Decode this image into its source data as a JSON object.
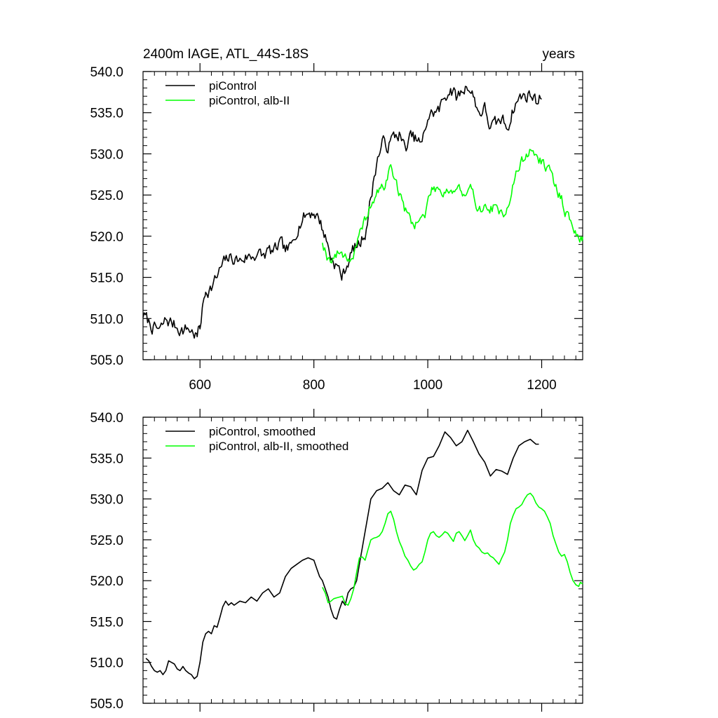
{
  "figure": {
    "title_left": "2400m IAGE, ATL_44S-18S",
    "title_right": "years"
  },
  "colors": {
    "picontrol": "#000000",
    "alb": "#00ff00",
    "axis": "#000000"
  },
  "chart_data": [
    {
      "type": "line",
      "id": "raw",
      "xlim": [
        500,
        1272
      ],
      "ylim": [
        505,
        540
      ],
      "xticks": [
        600,
        800,
        1000,
        1200
      ],
      "xtick_labels": [
        "600",
        "800",
        "1000",
        "1200"
      ],
      "yticks": [
        505,
        510,
        515,
        520,
        525,
        530,
        535,
        540
      ],
      "ytick_labels": [
        "505.0",
        "510.0",
        "515.0",
        "520.0",
        "525.0",
        "530.0",
        "535.0",
        "540.0"
      ],
      "legend": [
        "piControl",
        "piControl, alb-II"
      ],
      "series": [
        {
          "name": "piControl",
          "color": "#000000",
          "noise": 0.9,
          "seed": 7,
          "x": [
            500,
            510,
            520,
            530,
            540,
            550,
            560,
            570,
            580,
            590,
            595,
            600,
            605,
            610,
            620,
            630,
            640,
            650,
            660,
            670,
            680,
            690,
            700,
            710,
            720,
            730,
            740,
            750,
            760,
            770,
            780,
            790,
            800,
            810,
            820,
            830,
            840,
            845,
            850,
            860,
            870,
            880,
            890,
            900,
            910,
            920,
            930,
            940,
            950,
            960,
            970,
            980,
            990,
            1000,
            1010,
            1020,
            1030,
            1040,
            1050,
            1060,
            1070,
            1080,
            1090,
            1100,
            1110,
            1120,
            1130,
            1140,
            1150,
            1160,
            1170,
            1180,
            1190,
            1200
          ],
          "y": [
            510.5,
            509.5,
            508.8,
            508.5,
            509.8,
            509.5,
            509.0,
            508.6,
            508.8,
            508.2,
            507.8,
            509.0,
            511.5,
            513.5,
            513.8,
            515.0,
            516.5,
            517.3,
            517.3,
            517.0,
            517.5,
            517.5,
            518.0,
            517.5,
            518.2,
            518.0,
            519.0,
            518.2,
            518.5,
            521.0,
            522.2,
            522.8,
            523.0,
            522.0,
            520.0,
            517.5,
            516.5,
            515.8,
            515.0,
            517.0,
            518.5,
            519.0,
            520.5,
            524.5,
            529.0,
            531.3,
            531.0,
            532.0,
            532.5,
            530.5,
            532.0,
            531.7,
            531.0,
            534.5,
            535.0,
            535.3,
            537.0,
            538.0,
            536.8,
            537.5,
            538.5,
            537.0,
            535.0,
            535.5,
            533.2,
            533.5,
            534.2,
            533.3,
            535.5,
            536.8,
            537.0,
            537.3,
            536.5,
            537.0
          ]
        },
        {
          "name": "piControl, alb-II",
          "color": "#00ff00",
          "noise": 0.75,
          "seed": 19,
          "x": [
            815,
            825,
            835,
            845,
            855,
            865,
            875,
            885,
            895,
            905,
            915,
            925,
            935,
            945,
            955,
            965,
            975,
            985,
            995,
            1005,
            1015,
            1025,
            1035,
            1045,
            1055,
            1065,
            1075,
            1085,
            1095,
            1105,
            1115,
            1125,
            1135,
            1145,
            1155,
            1165,
            1175,
            1185,
            1195,
            1205,
            1215,
            1225,
            1235,
            1245,
            1255,
            1265,
            1272
          ],
          "y": [
            519.5,
            517.3,
            517.5,
            518.0,
            517.8,
            517.2,
            518.5,
            521.0,
            523.0,
            524.5,
            525.5,
            526.2,
            528.5,
            526.5,
            524.0,
            522.5,
            521.5,
            522.0,
            522.5,
            525.5,
            526.0,
            525.5,
            525.8,
            525.5,
            526.0,
            524.5,
            525.5,
            524.0,
            523.5,
            523.2,
            523.5,
            522.5,
            523.0,
            525.0,
            527.5,
            529.0,
            530.0,
            530.5,
            529.3,
            528.7,
            527.5,
            526.0,
            524.5,
            522.5,
            521.0,
            519.8,
            519.5
          ]
        }
      ]
    },
    {
      "type": "line",
      "id": "smoothed",
      "xlim": [
        500,
        1272
      ],
      "ylim": [
        505,
        540
      ],
      "xticks": [
        600,
        800,
        1000,
        1200
      ],
      "xtick_labels": [],
      "yticks": [
        505,
        510,
        515,
        520,
        525,
        530,
        535,
        540
      ],
      "ytick_labels": [
        "505.0",
        "510.0",
        "515.0",
        "520.0",
        "525.0",
        "530.0",
        "535.0",
        "540.0"
      ],
      "legend": [
        "piControl, smoothed",
        "piControl, alb-II, smoothed"
      ],
      "series": [
        {
          "name": "piControl, smoothed",
          "color": "#000000",
          "noise": 0,
          "seed": 3,
          "x": [
            505,
            510,
            515,
            520,
            525,
            530,
            535,
            540,
            545,
            550,
            555,
            560,
            565,
            570,
            575,
            580,
            585,
            590,
            595,
            600,
            605,
            610,
            615,
            620,
            625,
            630,
            635,
            640,
            645,
            650,
            655,
            660,
            670,
            680,
            690,
            700,
            710,
            720,
            730,
            740,
            750,
            760,
            770,
            780,
            790,
            800,
            805,
            810,
            815,
            820,
            825,
            830,
            835,
            840,
            845,
            850,
            855,
            860,
            865,
            870,
            875,
            880,
            890,
            900,
            910,
            920,
            930,
            940,
            950,
            960,
            970,
            980,
            990,
            1000,
            1010,
            1020,
            1030,
            1040,
            1050,
            1060,
            1070,
            1080,
            1090,
            1100,
            1110,
            1120,
            1130,
            1140,
            1150,
            1160,
            1170,
            1180,
            1190,
            1195
          ],
          "y": [
            510.5,
            510.2,
            509.5,
            509.0,
            508.8,
            509.0,
            508.5,
            509.0,
            510.2,
            510.0,
            509.8,
            509.2,
            509.0,
            509.5,
            509.0,
            508.7,
            508.5,
            508.0,
            508.3,
            510.0,
            512.5,
            513.5,
            513.8,
            513.5,
            514.5,
            514.3,
            515.5,
            516.8,
            517.5,
            517.0,
            517.3,
            517.0,
            517.5,
            517.3,
            518.0,
            517.5,
            518.5,
            519.0,
            518.0,
            518.5,
            520.5,
            521.5,
            522.0,
            522.5,
            522.8,
            522.5,
            521.5,
            520.5,
            520.0,
            519.0,
            518.0,
            516.5,
            515.5,
            515.3,
            516.5,
            517.5,
            517.0,
            518.5,
            519.0,
            519.2,
            520.0,
            522.0,
            526.0,
            530.0,
            531.0,
            531.3,
            532.0,
            531.0,
            530.5,
            531.7,
            531.5,
            530.5,
            533.5,
            535.0,
            535.2,
            536.5,
            538.2,
            537.5,
            536.5,
            537.0,
            538.4,
            537.0,
            535.5,
            534.5,
            532.8,
            533.6,
            533.4,
            533.0,
            535.0,
            536.5,
            537.0,
            537.3,
            536.7,
            536.7
          ]
        },
        {
          "name": "piControl, alb-II, smoothed",
          "color": "#00ff00",
          "noise": 0,
          "seed": 5,
          "x": [
            815,
            820,
            825,
            830,
            835,
            840,
            845,
            850,
            855,
            860,
            865,
            870,
            875,
            880,
            885,
            890,
            895,
            900,
            905,
            910,
            915,
            920,
            925,
            930,
            935,
            940,
            945,
            950,
            955,
            960,
            965,
            970,
            975,
            980,
            985,
            990,
            995,
            1000,
            1005,
            1010,
            1015,
            1020,
            1025,
            1030,
            1035,
            1040,
            1045,
            1050,
            1055,
            1060,
            1065,
            1070,
            1075,
            1080,
            1085,
            1090,
            1095,
            1100,
            1105,
            1110,
            1115,
            1120,
            1125,
            1130,
            1135,
            1140,
            1145,
            1150,
            1155,
            1160,
            1165,
            1170,
            1175,
            1180,
            1185,
            1190,
            1195,
            1200,
            1205,
            1210,
            1215,
            1220,
            1225,
            1230,
            1235,
            1240,
            1245,
            1250,
            1255,
            1260,
            1265,
            1268,
            1272
          ],
          "y": [
            519.2,
            518.5,
            517.3,
            517.5,
            517.8,
            517.9,
            518.0,
            518.1,
            517.2,
            517.0,
            517.8,
            519.0,
            521.0,
            522.8,
            522.9,
            522.5,
            523.8,
            525.0,
            525.2,
            525.3,
            525.5,
            526.0,
            527.0,
            528.2,
            528.5,
            527.5,
            526.0,
            524.8,
            524.0,
            523.0,
            522.5,
            521.8,
            521.3,
            521.5,
            522.0,
            522.3,
            523.5,
            525.0,
            525.8,
            526.0,
            525.5,
            525.3,
            525.6,
            526.0,
            525.8,
            525.3,
            524.8,
            525.8,
            526.0,
            525.5,
            524.9,
            525.5,
            526.2,
            525.0,
            524.3,
            524.0,
            523.5,
            523.3,
            523.4,
            523.0,
            522.8,
            522.4,
            522.0,
            522.8,
            523.5,
            525.0,
            527.0,
            528.0,
            528.8,
            529.0,
            529.3,
            530.0,
            530.5,
            530.7,
            530.3,
            529.5,
            529.0,
            528.8,
            528.5,
            527.8,
            527.0,
            525.5,
            524.5,
            523.5,
            523.0,
            523.2,
            522.3,
            521.0,
            520.0,
            519.5,
            519.3,
            519.8,
            519.6
          ]
        }
      ]
    }
  ]
}
